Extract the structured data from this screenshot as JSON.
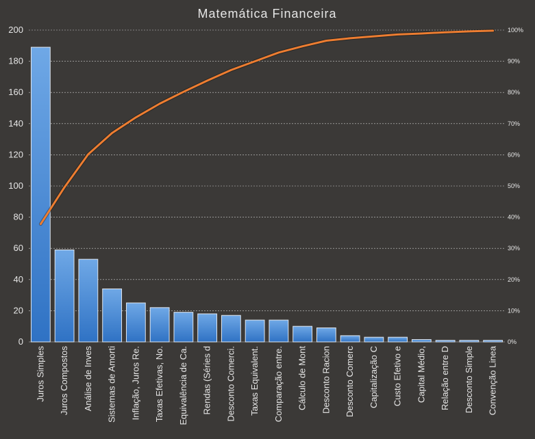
{
  "colors": {
    "background": "#3b3937",
    "bar_fill_top": "#6fa8e6",
    "bar_fill_bottom": "#2f72c4",
    "bar_stroke": "#dfe6ee",
    "line": "#ed7d31",
    "grid": "#cfcfcf",
    "text": "#e6e6e6"
  },
  "chart_data": {
    "type": "bar",
    "title": "Matemática Financeira",
    "xlabel": "",
    "ylabel": "",
    "ylim": [
      0,
      200
    ],
    "y_ticks": [
      "0",
      "20",
      "40",
      "60",
      "80",
      "100",
      "120",
      "140",
      "160",
      "180",
      "200"
    ],
    "y2lim": [
      0,
      100
    ],
    "y2_ticks": [
      "0%",
      "10%",
      "20%",
      "30%",
      "40%",
      "50%",
      "60%",
      "70%",
      "80%",
      "90%",
      "100%"
    ],
    "grid": true,
    "categories": [
      "Juros Simples",
      "Juros Compostos",
      "Análise de Inves",
      "Sistemas de Amorti",
      "Inflação, Juros Re.",
      "Taxas Efetivas, No.",
      "Equivalência de Ca.",
      "Rendas (Séries d",
      "Desconto Comerci.",
      "Taxas Equivalent.",
      "Comparação entre.",
      "Cálculo de Mont",
      "Desconto Racion",
      "Desconto Comerc",
      "Capitalização C",
      "Custo Efetivo e",
      "Capital Médio,",
      "Relação entre D",
      "Desconto Simple",
      "Convenção Linea"
    ],
    "series": [
      {
        "type": "bar",
        "axis": "left",
        "values": [
          189,
          59,
          53,
          34,
          25,
          22,
          19,
          18,
          17,
          14,
          14,
          10,
          9,
          4,
          3,
          3,
          1.5,
          1,
          1,
          1
        ]
      },
      {
        "type": "line",
        "axis": "right",
        "values": [
          37.8,
          49.6,
          60.2,
          67.0,
          72.0,
          76.4,
          80.2,
          83.8,
          87.2,
          90.0,
          92.8,
          94.8,
          96.6,
          97.4,
          98.0,
          98.6,
          98.9,
          99.3,
          99.6,
          99.8
        ]
      }
    ]
  }
}
